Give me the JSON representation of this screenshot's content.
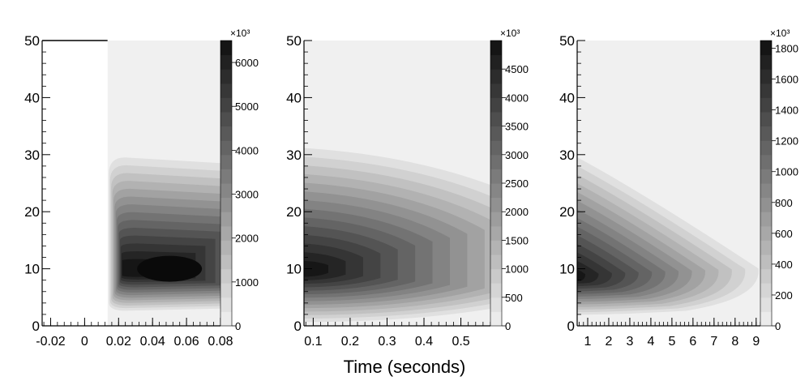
{
  "xlabel": "Time (seconds)",
  "chart_data": [
    {
      "type": "heatmap",
      "xlim": [
        -0.025,
        0.08
      ],
      "ylim": [
        0,
        50
      ],
      "xticks": [
        "-0.02",
        "0",
        "0.02",
        "0.04",
        "0.06",
        "0.08"
      ],
      "yticks": [
        "0",
        "10",
        "20",
        "30",
        "40",
        "50"
      ],
      "colorbar": {
        "min": 0,
        "max": 6500,
        "multiplier": "×10³",
        "ticks": [
          "0",
          "1000",
          "2000",
          "3000",
          "4000",
          "5000",
          "6000"
        ]
      },
      "data_x_start": 0.0135,
      "peak": {
        "x": 0.05,
        "y": 10,
        "value": 6500
      }
    },
    {
      "type": "heatmap",
      "xlim": [
        0.075,
        0.58
      ],
      "ylim": [
        0,
        50
      ],
      "xticks": [
        "0.1",
        "0.2",
        "0.3",
        "0.4",
        "0.5"
      ],
      "yticks": [
        "0",
        "10",
        "20",
        "30",
        "40",
        "50"
      ],
      "colorbar": {
        "min": 0,
        "max": 5000,
        "multiplier": "×10³",
        "ticks": [
          "0",
          "500",
          "1000",
          "1500",
          "2000",
          "2500",
          "3000",
          "3500",
          "4000",
          "4500"
        ]
      },
      "peak": {
        "x": 0.075,
        "y": 10,
        "value": 5000
      }
    },
    {
      "type": "heatmap",
      "xlim": [
        0.5,
        9.2
      ],
      "ylim": [
        0,
        50
      ],
      "xticks": [
        "1",
        "2",
        "3",
        "4",
        "5",
        "6",
        "7",
        "8",
        "9"
      ],
      "yticks": [
        "0",
        "10",
        "20",
        "30",
        "40",
        "50"
      ],
      "colorbar": {
        "min": 0,
        "max": 1850,
        "multiplier": "×10³",
        "ticks": [
          "0",
          "200",
          "400",
          "600",
          "800",
          "1000",
          "1200",
          "1400",
          "1600",
          "1800"
        ]
      },
      "peak": {
        "x": 0.5,
        "y": 9,
        "value": 1850
      }
    }
  ]
}
